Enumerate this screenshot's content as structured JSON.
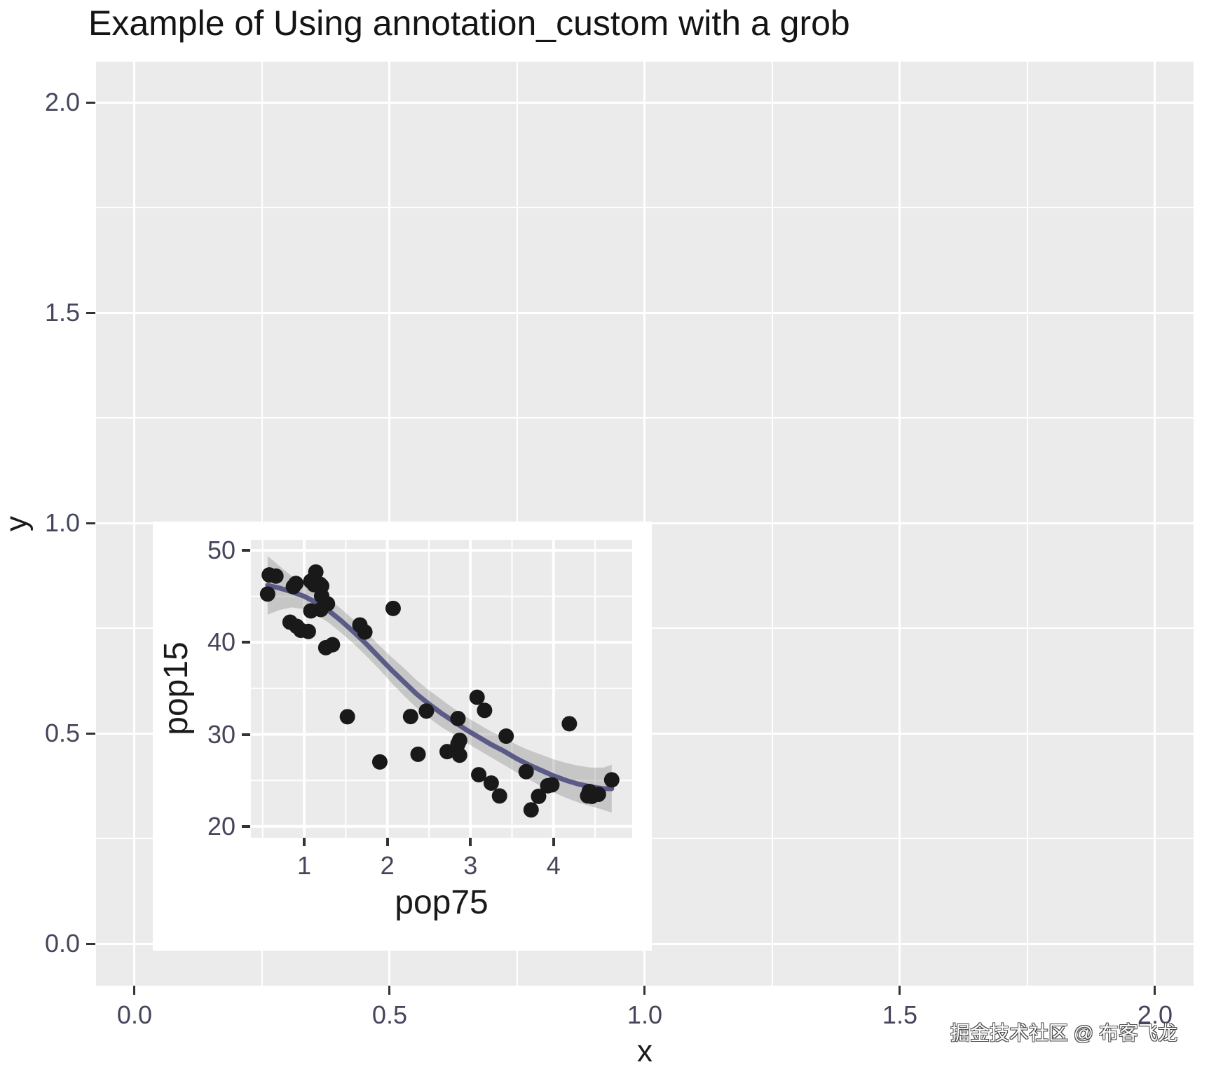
{
  "title": "Example of Using annotation_custom with a grob",
  "watermark": "掘金技术社区 @ 布客飞龙",
  "colors": {
    "panel_background": "#EBEBEB",
    "gridline": "#FFFFFF",
    "tick_mark": "#333333",
    "tick_label": "#45455c",
    "axis_title": "#1a1a1a",
    "point": "#191919",
    "smooth_line": "#5b5b87",
    "ci_band": "rgba(120,120,120,0.32)",
    "watermark_fill": "#FFFFFF",
    "watermark_outline": "#4a4a4a"
  },
  "main_plot": {
    "x_title": "x",
    "y_title": "y",
    "x_ticks": [
      {
        "v": 0.0,
        "label": "0.0"
      },
      {
        "v": 0.5,
        "label": "0.5"
      },
      {
        "v": 1.0,
        "label": "1.0"
      },
      {
        "v": 1.5,
        "label": "1.5"
      },
      {
        "v": 2.0,
        "label": "2.0"
      }
    ],
    "x_minor": [
      0.25,
      0.75,
      1.25,
      1.75
    ],
    "y_ticks": [
      {
        "v": 2.0,
        "label": "2.0"
      },
      {
        "v": 1.5,
        "label": "1.5"
      },
      {
        "v": 1.0,
        "label": "1.0"
      },
      {
        "v": 0.5,
        "label": "0.5"
      },
      {
        "v": 0.0,
        "label": "0.0"
      }
    ],
    "y_minor": [
      1.75,
      1.25,
      0.75,
      0.25
    ],
    "xlim": [
      -0.0755,
      2.0756
    ],
    "ylim": [
      -0.1,
      2.0967
    ]
  },
  "inset_plot": {
    "x_title": "pop75",
    "y_title": "pop15",
    "x_ticks": [
      {
        "v": 1,
        "label": "1"
      },
      {
        "v": 2,
        "label": "2"
      },
      {
        "v": 3,
        "label": "3"
      },
      {
        "v": 4,
        "label": "4"
      }
    ],
    "x_minor": [
      0.5,
      1.5,
      2.5,
      3.5,
      4.5
    ],
    "y_ticks": [
      {
        "v": 50,
        "label": "50"
      },
      {
        "v": 40,
        "label": "40"
      },
      {
        "v": 30,
        "label": "30"
      },
      {
        "v": 20,
        "label": "20"
      }
    ],
    "y_minor": [
      45,
      35,
      25
    ],
    "xlim": [
      0.359,
      4.946
    ],
    "ylim": [
      18.77,
      51.14
    ]
  },
  "chart_data": [
    {
      "type": "scatter",
      "title": "Example of Using annotation_custom with a grob",
      "xlabel": "x",
      "ylabel": "y",
      "x_ticks": [
        0.0,
        0.5,
        1.0,
        1.5,
        2.0
      ],
      "y_ticks": [
        0.0,
        0.5,
        1.0,
        1.5,
        2.0
      ],
      "xlim": [
        -0.075,
        2.075
      ],
      "ylim": [
        -0.1,
        2.1
      ],
      "grid": true,
      "points": [],
      "note": "empty base plot serving as canvas for the inset grob"
    },
    {
      "type": "scatter",
      "xlabel": "pop75",
      "ylabel": "pop15",
      "x_ticks": [
        1,
        2,
        3,
        4
      ],
      "y_ticks": [
        20,
        30,
        40,
        50
      ],
      "xlim": [
        0.36,
        4.95
      ],
      "ylim": [
        18.8,
        51.1
      ],
      "grid": true,
      "inset_position_in_parent": {
        "xmin": 0,
        "xmax": 1,
        "ymin": 0,
        "ymax": 1
      },
      "points_xy": [
        [
          2.87,
          29.35
        ],
        [
          4.41,
          23.32
        ],
        [
          4.43,
          23.8
        ],
        [
          1.67,
          41.89
        ],
        [
          0.83,
          42.19
        ],
        [
          2.85,
          31.72
        ],
        [
          1.34,
          39.74
        ],
        [
          1.26,
          39.42
        ],
        [
          1.08,
          46.64
        ],
        [
          1.14,
          47.64
        ],
        [
          3.93,
          24.42
        ],
        [
          1.19,
          46.31
        ],
        [
          2.37,
          27.84
        ],
        [
          4.7,
          25.06
        ],
        [
          3.35,
          23.31
        ],
        [
          3.1,
          25.62
        ],
        [
          0.87,
          46.05
        ],
        [
          0.58,
          47.32
        ],
        [
          3.08,
          34.03
        ],
        [
          0.96,
          41.31
        ],
        [
          4.19,
          31.16
        ],
        [
          3.98,
          24.52
        ],
        [
          1.91,
          27.01
        ],
        [
          0.91,
          41.74
        ],
        [
          3.73,
          21.8
        ],
        [
          2.47,
          32.54
        ],
        [
          3.67,
          25.95
        ],
        [
          3.25,
          24.71
        ],
        [
          3.17,
          32.61
        ],
        [
          1.21,
          45.04
        ],
        [
          1.2,
          43.56
        ],
        [
          1.05,
          41.18
        ],
        [
          1.28,
          44.19
        ],
        [
          1.12,
          46.26
        ],
        [
          2.85,
          28.96
        ],
        [
          2.28,
          31.94
        ],
        [
          1.52,
          31.92
        ],
        [
          2.87,
          27.74
        ],
        [
          4.54,
          23.49
        ],
        [
          3.82,
          23.27
        ],
        [
          1.08,
          43.42
        ],
        [
          1.21,
          46.12
        ],
        [
          4.46,
          23.27
        ],
        [
          3.43,
          29.81
        ],
        [
          0.9,
          46.4
        ],
        [
          0.56,
          45.25
        ],
        [
          1.73,
          41.12
        ],
        [
          2.72,
          28.13
        ],
        [
          2.07,
          43.69
        ],
        [
          0.66,
          47.2
        ]
      ],
      "smooth": {
        "x": [
          0.56,
          0.7,
          0.85,
          1.0,
          1.15,
          1.3,
          1.45,
          1.6,
          1.75,
          1.9,
          2.05,
          2.2,
          2.35,
          2.5,
          2.65,
          2.8,
          2.95,
          3.1,
          3.25,
          3.4,
          3.55,
          3.7,
          3.85,
          4.0,
          4.15,
          4.3,
          4.45,
          4.6,
          4.7
        ],
        "y": [
          46.2,
          45.9,
          45.5,
          45.0,
          44.3,
          43.4,
          42.3,
          41.1,
          39.8,
          38.4,
          37.0,
          35.7,
          34.4,
          33.3,
          32.3,
          31.4,
          30.5,
          29.7,
          28.9,
          28.2,
          27.4,
          26.7,
          26.1,
          25.5,
          25.0,
          24.6,
          24.3,
          24.1,
          24.1
        ],
        "ylo": [
          43.0,
          43.5,
          43.8,
          43.6,
          43.0,
          42.1,
          41.0,
          39.8,
          38.5,
          37.1,
          35.6,
          34.2,
          32.9,
          31.8,
          30.8,
          30.0,
          29.1,
          28.3,
          27.5,
          26.7,
          25.9,
          25.1,
          24.4,
          23.7,
          23.1,
          22.6,
          22.2,
          21.8,
          21.5
        ],
        "yhi": [
          49.4,
          48.3,
          47.2,
          46.4,
          45.6,
          44.7,
          43.6,
          42.4,
          41.1,
          39.7,
          38.4,
          37.2,
          35.9,
          34.8,
          33.8,
          32.8,
          31.9,
          31.1,
          30.3,
          29.7,
          28.9,
          28.3,
          27.8,
          27.3,
          26.9,
          26.6,
          26.4,
          26.4,
          26.7
        ]
      }
    }
  ]
}
